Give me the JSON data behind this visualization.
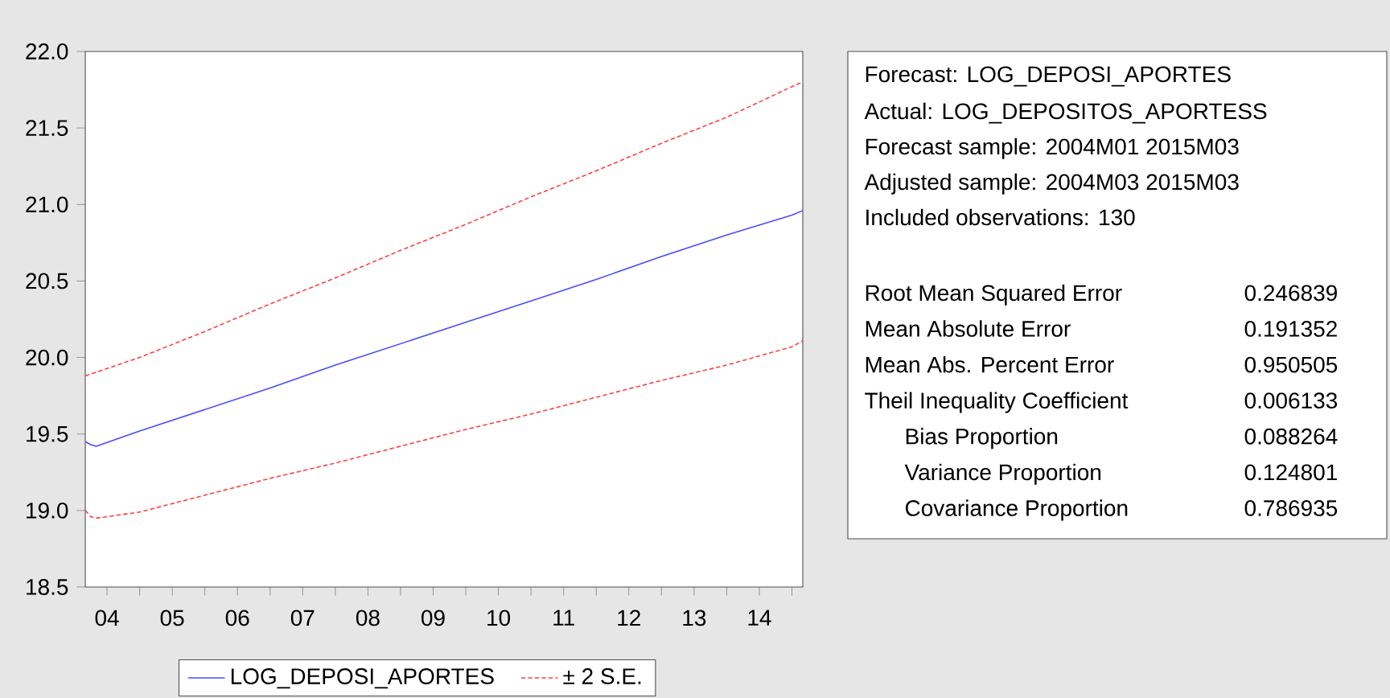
{
  "chart_data": {
    "type": "line",
    "xlim": [
      "2004-03",
      "2015-03"
    ],
    "xticks": [
      {
        "value": "2004-07",
        "label": "04"
      },
      {
        "value": "2005-07",
        "label": "05"
      },
      {
        "value": "2006-07",
        "label": "06"
      },
      {
        "value": "2007-07",
        "label": "07"
      },
      {
        "value": "2008-07",
        "label": "08"
      },
      {
        "value": "2009-07",
        "label": "09"
      },
      {
        "value": "2010-07",
        "label": "10"
      },
      {
        "value": "2011-07",
        "label": "11"
      },
      {
        "value": "2012-07",
        "label": "12"
      },
      {
        "value": "2013-07",
        "label": "13"
      },
      {
        "value": "2014-07",
        "label": "14"
      },
      {
        "value": "2005-01",
        "label": null
      },
      {
        "value": "2006-01",
        "label": null
      },
      {
        "value": "2007-01",
        "label": null
      },
      {
        "value": "2008-01",
        "label": null
      },
      {
        "value": "2009-01",
        "label": null
      },
      {
        "value": "2010-01",
        "label": null
      },
      {
        "value": "2011-01",
        "label": null
      },
      {
        "value": "2012-01",
        "label": null
      },
      {
        "value": "2013-01",
        "label": null
      },
      {
        "value": "2014-01",
        "label": null
      },
      {
        "value": "2015-01",
        "label": null
      }
    ],
    "ylim": [
      18.5,
      22.0
    ],
    "yticks": [
      {
        "value": 18.5,
        "label": "18.5"
      },
      {
        "value": 19.0,
        "label": "19.0"
      },
      {
        "value": 19.5,
        "label": "19.5"
      },
      {
        "value": 20.0,
        "label": "20.0"
      },
      {
        "value": 20.5,
        "label": "20.5"
      },
      {
        "value": 21.0,
        "label": "21.0"
      },
      {
        "value": 21.5,
        "label": "21.5"
      },
      {
        "value": 22.0,
        "label": "22.0"
      }
    ],
    "legend": "bottom",
    "series": [
      {
        "name": "LOG_DEPOSI_APORTES",
        "color": "#4a4aff",
        "line_style": "solid",
        "x": [
          "2004-03",
          "2004-04",
          "2004-05",
          "2005-01",
          "2006-01",
          "2007-01",
          "2008-01",
          "2009-01",
          "2010-01",
          "2011-01",
          "2012-01",
          "2013-01",
          "2014-01",
          "2015-01",
          "2015-03"
        ],
        "values": [
          19.45,
          19.43,
          19.42,
          19.52,
          19.66,
          19.8,
          19.95,
          20.09,
          20.23,
          20.37,
          20.51,
          20.66,
          20.8,
          20.93,
          20.96
        ]
      },
      {
        "name": "± 2 S.E.",
        "color": "#ff4040",
        "line_style": "dashed",
        "x": [
          "2004-03",
          "2005-01",
          "2006-01",
          "2007-01",
          "2008-01",
          "2009-01",
          "2010-01",
          "2011-01",
          "2012-01",
          "2013-01",
          "2014-01",
          "2015-01",
          "2015-03"
        ],
        "values": [
          19.88,
          20.0,
          20.17,
          20.35,
          20.52,
          20.7,
          20.87,
          21.05,
          21.22,
          21.4,
          21.57,
          21.77,
          21.8
        ]
      },
      {
        "color": "#ff4040",
        "line_style": "dashed",
        "x": [
          "2004-03",
          "2004-04",
          "2004-05",
          "2005-01",
          "2006-01",
          "2007-01",
          "2008-01",
          "2009-01",
          "2010-01",
          "2011-01",
          "2012-01",
          "2013-01",
          "2014-01",
          "2015-01",
          "2015-03"
        ],
        "values": [
          19.0,
          18.96,
          18.95,
          18.99,
          19.1,
          19.21,
          19.31,
          19.42,
          19.53,
          19.63,
          19.74,
          19.85,
          19.95,
          20.07,
          20.11
        ]
      }
    ],
    "annotations": [
      "Forecast: LOG_DEPOSI_APORTES",
      "Actual: LOG_DEPOSITOS_APORTESS",
      "Forecast sample: 2004M01 2015M03",
      "Adjusted sample: 2004M03 2015M03",
      "Included observations: 130",
      "Root Mean Squared Error",
      "0.246839",
      "Mean Absolute Error",
      "0.191352",
      "Mean Abs. Percent Error",
      "0.950505",
      "Theil Inequality Coefficient",
      "0.006133",
      "Bias Proportion",
      "0.088264",
      "Variance Proportion",
      "0.124801",
      "Covariance Proportion",
      "0.786935"
    ]
  }
}
